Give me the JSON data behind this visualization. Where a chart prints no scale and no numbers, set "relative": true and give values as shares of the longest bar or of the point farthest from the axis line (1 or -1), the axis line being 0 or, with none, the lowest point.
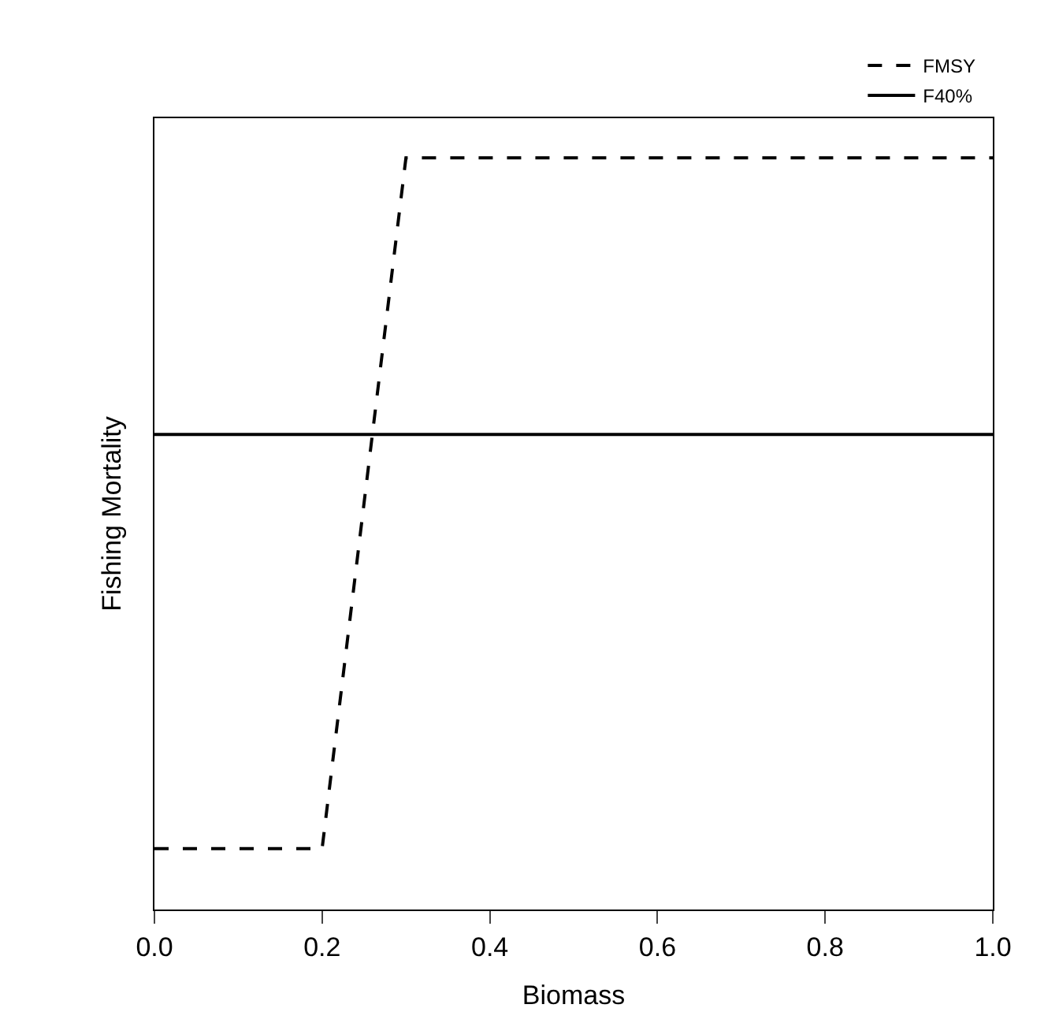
{
  "chart_data": {
    "type": "line",
    "xlabel": "Biomass",
    "ylabel": "Fishing Mortality",
    "relative": true,
    "xlim": [
      0,
      1
    ],
    "xticks": [
      {
        "value": 0,
        "label": "0.0"
      },
      {
        "value": 0.2,
        "label": "0.2"
      },
      {
        "value": 0.4,
        "label": "0.4"
      },
      {
        "value": 0.6,
        "label": "0.6"
      },
      {
        "value": 0.8,
        "label": "0.8"
      },
      {
        "value": 1,
        "label": "1.0"
      }
    ],
    "tick_labels": "x",
    "legend": "top right",
    "marker": "none",
    "series": [
      {
        "name": "FMSY",
        "color": "#000000",
        "line_style": "dashed",
        "x": [
          0,
          0.2,
          0.3,
          1
        ],
        "values": [
          0.081,
          0.081,
          1,
          1
        ]
      },
      {
        "name": "F40%",
        "color": "#000000",
        "line_style": "solid",
        "x": [
          0,
          1
        ],
        "values": [
          0.632,
          0.632
        ]
      }
    ]
  }
}
